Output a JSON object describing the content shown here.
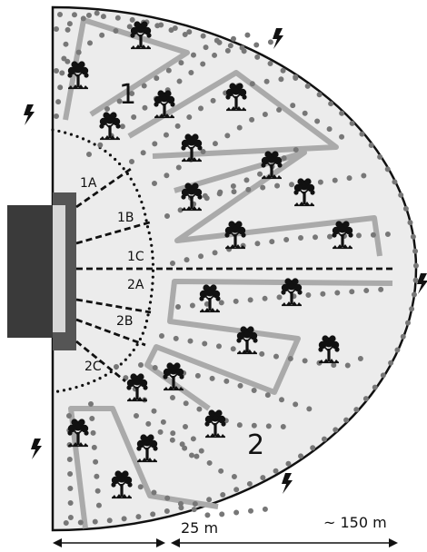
{
  "zones": [
    {
      "label": "1"
    },
    {
      "label": "2"
    }
  ],
  "branches": [
    {
      "label": "1A"
    },
    {
      "label": "1B"
    },
    {
      "label": "1C"
    },
    {
      "label": "2A"
    },
    {
      "label": "2B"
    },
    {
      "label": "2C"
    }
  ],
  "dimensions": {
    "inner": "25 m",
    "outer": "~ 150 m"
  },
  "colors": {
    "field_fill": "#ececec",
    "outline": "#111111",
    "dots": "#777777",
    "path_band": "#aaaaaa",
    "building_dark": "#3a3a3a",
    "building_mid": "#555555",
    "building_light": "#d6d6d6"
  },
  "icons": [
    "tree-icon",
    "lightning-icon"
  ]
}
